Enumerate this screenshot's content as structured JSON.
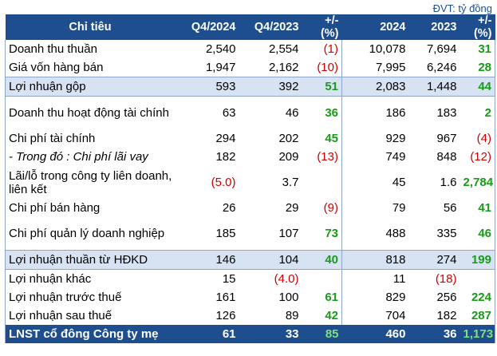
{
  "unit_note": "ĐVT: tỷ đồng",
  "headers": [
    "Chỉ tiêu",
    "Q4/2024",
    "Q4/2023",
    "+/- (%)",
    "2024",
    "2023",
    "+/- (%)"
  ],
  "rows": [
    {
      "label": "Doanh thu thuần",
      "q4_2024": "2,540",
      "q4_2023": "2,554",
      "q_change": "(1)",
      "y2024": "10,078",
      "y2023": "7,694",
      "y_change": "31"
    },
    {
      "label": "Giá vốn hàng bán",
      "q4_2024": "1,947",
      "q4_2023": "2,162",
      "q_change": "(10)",
      "y2024": "7,995",
      "y2023": "6,246",
      "y_change": "28"
    },
    {
      "label": "Lợi nhuận gộp",
      "q4_2024": "593",
      "q4_2023": "392",
      "q_change": "51",
      "y2024": "2,083",
      "y2023": "1,448",
      "y_change": "44"
    },
    {
      "label": "Doanh thu hoạt động tài chính",
      "q4_2024": "63",
      "q4_2023": "46",
      "q_change": "36",
      "y2024": "186",
      "y2023": "183",
      "y_change": "2"
    },
    {
      "label": "Chi phí tài chính",
      "q4_2024": "294",
      "q4_2023": "202",
      "q_change": "45",
      "y2024": "929",
      "y2023": "967",
      "y_change": "(4)"
    },
    {
      "label": "- Trong đó : Chi phí lãi vay",
      "q4_2024": "182",
      "q4_2023": "209",
      "q_change": "(13)",
      "y2024": "749",
      "y2023": "848",
      "y_change": "(12)"
    },
    {
      "label": "Lãi/lỗ trong công ty liên doanh, liên kết",
      "q4_2024": "(5.0)",
      "q4_2023": "3.7",
      "q_change": "",
      "y2024": "45",
      "y2023": "1.6",
      "y_change": "2,784"
    },
    {
      "label": "Chi phí bán hàng",
      "q4_2024": "26",
      "q4_2023": "29",
      "q_change": "(9)",
      "y2024": "79",
      "y2023": "56",
      "y_change": "41"
    },
    {
      "label": "Chi phí quản lý doanh nghiệp",
      "q4_2024": "185",
      "q4_2023": "107",
      "q_change": "73",
      "y2024": "488",
      "y2023": "335",
      "y_change": "46"
    },
    {
      "label": "Lợi nhuận thuần từ HĐKD",
      "q4_2024": "146",
      "q4_2023": "104",
      "q_change": "40",
      "y2024": "818",
      "y2023": "274",
      "y_change": "199"
    },
    {
      "label": "Lợi nhuận khác",
      "q4_2024": "15",
      "q4_2023": "(4.0)",
      "q_change": "",
      "y2024": "11",
      "y2023": "(18)",
      "y_change": ""
    },
    {
      "label": "Lợi nhuận trước thuế",
      "q4_2024": "161",
      "q4_2023": "100",
      "q_change": "61",
      "y2024": "829",
      "y2023": "256",
      "y_change": "224"
    },
    {
      "label": "Lợi nhuận sau thuế",
      "q4_2024": "126",
      "q4_2023": "89",
      "q_change": "42",
      "y2024": "704",
      "y2023": "182",
      "y_change": "287"
    },
    {
      "label": "LNST cổ đông Công ty mẹ",
      "q4_2024": "61",
      "q4_2023": "33",
      "q_change": "85",
      "y2024": "460",
      "y2023": "36",
      "y_change": "1,173"
    }
  ],
  "colors": {
    "header_bg": "#1f4e8f",
    "highlight_bg": "#d7e3f2",
    "negative": "#d10000",
    "positive": "#1a9a1a"
  }
}
